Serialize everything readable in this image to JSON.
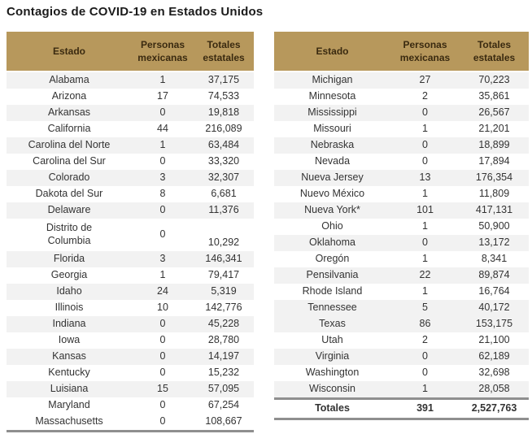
{
  "title": "Contagios de COVID-19 en Estados Unidos",
  "columns": [
    "Estado",
    "Personas mexicanas",
    "Totales estatales"
  ],
  "colors": {
    "header_bg": "#b7985c",
    "header_text": "#3a2a10",
    "stripe": "#f2f2f2",
    "thick_border": "#8f8f8f",
    "title_text": "#1b1b1b"
  },
  "left_table": {
    "rows": [
      {
        "state": "Alabama",
        "mexicanas": "1",
        "totales": "37,175",
        "shaded": true,
        "tall": false,
        "total": false
      },
      {
        "state": "Arizona",
        "mexicanas": "17",
        "totales": "74,533",
        "shaded": false,
        "tall": false,
        "total": false
      },
      {
        "state": "Arkansas",
        "mexicanas": "0",
        "totales": "19,818",
        "shaded": true,
        "tall": false,
        "total": false
      },
      {
        "state": "California",
        "mexicanas": "44",
        "totales": "216,089",
        "shaded": false,
        "tall": false,
        "total": false
      },
      {
        "state": "Carolina del Norte",
        "mexicanas": "1",
        "totales": "63,484",
        "shaded": true,
        "tall": false,
        "total": false
      },
      {
        "state": "Carolina del Sur",
        "mexicanas": "0",
        "totales": "33,320",
        "shaded": false,
        "tall": false,
        "total": false
      },
      {
        "state": "Colorado",
        "mexicanas": "3",
        "totales": "32,307",
        "shaded": true,
        "tall": false,
        "total": false
      },
      {
        "state": "Dakota del Sur",
        "mexicanas": "8",
        "totales": "6,681",
        "shaded": false,
        "tall": false,
        "total": false
      },
      {
        "state": "Delaware",
        "mexicanas": "0",
        "totales": "11,376",
        "shaded": true,
        "tall": false,
        "total": false
      },
      {
        "state": "Distrito de\nColumbia",
        "mexicanas": "0",
        "totales": "10,292",
        "shaded": false,
        "tall": true,
        "total": false
      },
      {
        "state": "Florida",
        "mexicanas": "3",
        "totales": "146,341",
        "shaded": true,
        "tall": false,
        "total": false
      },
      {
        "state": "Georgia",
        "mexicanas": "1",
        "totales": "79,417",
        "shaded": false,
        "tall": false,
        "total": false
      },
      {
        "state": "Idaho",
        "mexicanas": "24",
        "totales": "5,319",
        "shaded": true,
        "tall": false,
        "total": false
      },
      {
        "state": "Illinois",
        "mexicanas": "10",
        "totales": "142,776",
        "shaded": false,
        "tall": false,
        "total": false
      },
      {
        "state": "Indiana",
        "mexicanas": "0",
        "totales": "45,228",
        "shaded": true,
        "tall": false,
        "total": false
      },
      {
        "state": "Iowa",
        "mexicanas": "0",
        "totales": "28,780",
        "shaded": false,
        "tall": false,
        "total": false
      },
      {
        "state": "Kansas",
        "mexicanas": "0",
        "totales": "14,197",
        "shaded": true,
        "tall": false,
        "total": false
      },
      {
        "state": "Kentucky",
        "mexicanas": "0",
        "totales": "15,232",
        "shaded": false,
        "tall": false,
        "total": false
      },
      {
        "state": "Luisiana",
        "mexicanas": "15",
        "totales": "57,095",
        "shaded": true,
        "tall": false,
        "total": false
      },
      {
        "state": "Maryland",
        "mexicanas": "0",
        "totales": "67,254",
        "shaded": false,
        "tall": false,
        "total": false
      },
      {
        "state": "Massachusetts",
        "mexicanas": "0",
        "totales": "108,667",
        "shaded": false,
        "tall": false,
        "total": false
      }
    ]
  },
  "right_table": {
    "rows": [
      {
        "state": "Michigan",
        "mexicanas": "27",
        "totales": "70,223",
        "shaded": true,
        "tall": false,
        "total": false
      },
      {
        "state": "Minnesota",
        "mexicanas": "2",
        "totales": "35,861",
        "shaded": false,
        "tall": false,
        "total": false
      },
      {
        "state": "Mississippi",
        "mexicanas": "0",
        "totales": "26,567",
        "shaded": true,
        "tall": false,
        "total": false
      },
      {
        "state": "Missouri",
        "mexicanas": "1",
        "totales": "21,201",
        "shaded": false,
        "tall": false,
        "total": false
      },
      {
        "state": "Nebraska",
        "mexicanas": "0",
        "totales": "18,899",
        "shaded": true,
        "tall": false,
        "total": false
      },
      {
        "state": "Nevada",
        "mexicanas": "0",
        "totales": "17,894",
        "shaded": false,
        "tall": false,
        "total": false
      },
      {
        "state": "Nueva Jersey",
        "mexicanas": "13",
        "totales": "176,354",
        "shaded": true,
        "tall": false,
        "total": false
      },
      {
        "state": "Nuevo México",
        "mexicanas": "1",
        "totales": "11,809",
        "shaded": false,
        "tall": false,
        "total": false
      },
      {
        "state": "Nueva York*",
        "mexicanas": "101",
        "totales": "417,131",
        "shaded": true,
        "tall": false,
        "total": false
      },
      {
        "state": "Ohio",
        "mexicanas": "1",
        "totales": "50,900",
        "shaded": false,
        "tall": false,
        "total": false
      },
      {
        "state": "Oklahoma",
        "mexicanas": "0",
        "totales": "13,172",
        "shaded": true,
        "tall": false,
        "total": false
      },
      {
        "state": "Oregón",
        "mexicanas": "1",
        "totales": "8,341",
        "shaded": false,
        "tall": false,
        "total": false
      },
      {
        "state": "Pensilvania",
        "mexicanas": "22",
        "totales": "89,874",
        "shaded": true,
        "tall": false,
        "total": false
      },
      {
        "state": "Rhode Island",
        "mexicanas": "1",
        "totales": "16,764",
        "shaded": false,
        "tall": false,
        "total": false
      },
      {
        "state": "Tennessee",
        "mexicanas": "5",
        "totales": "40,172",
        "shaded": true,
        "tall": false,
        "total": false
      },
      {
        "state": "Texas",
        "mexicanas": "86",
        "totales": "153,175",
        "shaded": true,
        "tall": false,
        "total": false
      },
      {
        "state": "Utah",
        "mexicanas": "2",
        "totales": "21,100",
        "shaded": false,
        "tall": false,
        "total": false
      },
      {
        "state": "Virginia",
        "mexicanas": "0",
        "totales": "62,189",
        "shaded": true,
        "tall": false,
        "total": false
      },
      {
        "state": "Washington",
        "mexicanas": "0",
        "totales": "32,698",
        "shaded": false,
        "tall": false,
        "total": false
      },
      {
        "state": "Wisconsin",
        "mexicanas": "1",
        "totales": "28,058",
        "shaded": true,
        "tall": false,
        "total": false
      },
      {
        "state": "Totales",
        "mexicanas": "391",
        "totales": "2,527,763",
        "shaded": false,
        "tall": false,
        "total": true
      }
    ]
  }
}
